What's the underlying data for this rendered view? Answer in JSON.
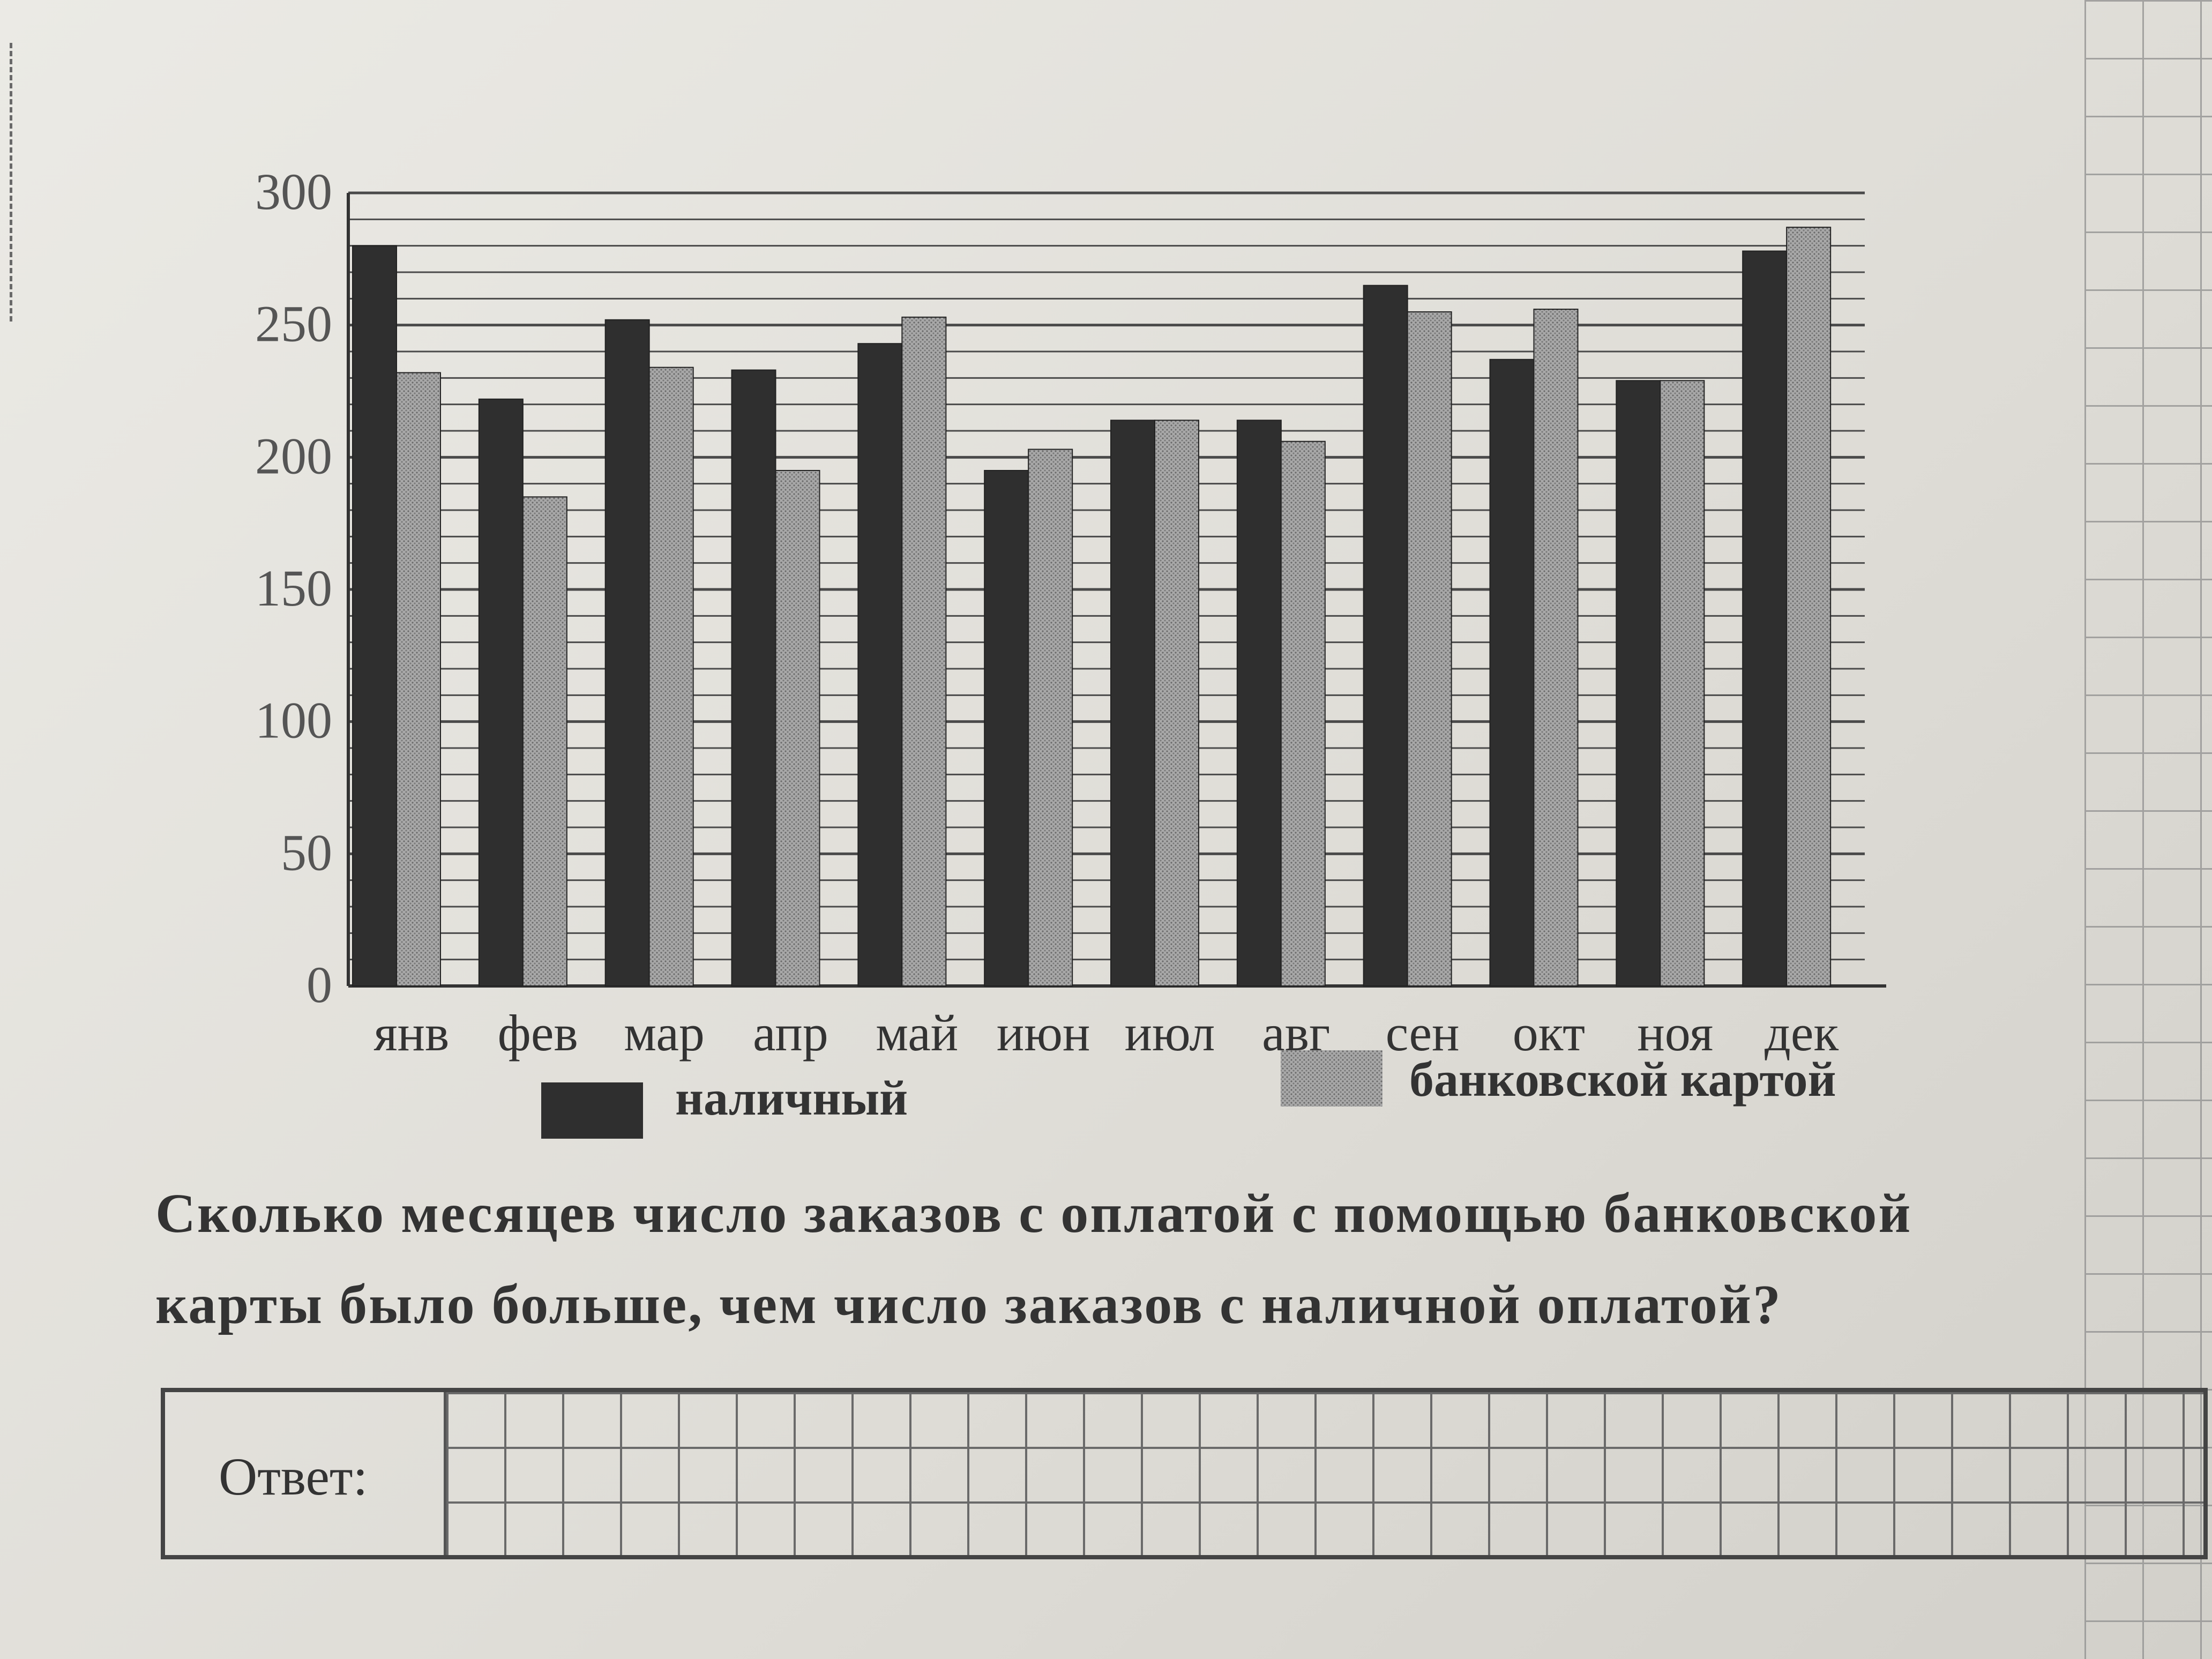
{
  "chart_data": {
    "type": "bar",
    "categories": [
      "янв",
      "фев",
      "мар",
      "апр",
      "май",
      "июн",
      "июл",
      "авг",
      "сен",
      "окт",
      "ноя",
      "дек"
    ],
    "series": [
      {
        "name": "наличный",
        "values": [
          280,
          222,
          252,
          233,
          243,
          195,
          214,
          214,
          265,
          237,
          229,
          278
        ]
      },
      {
        "name": "банковской картой",
        "values": [
          232,
          185,
          234,
          195,
          253,
          203,
          214,
          206,
          255,
          256,
          229,
          287
        ]
      }
    ],
    "ylim": [
      0,
      300
    ],
    "yticks": [
      "0",
      "50",
      "100",
      "150",
      "200",
      "250",
      "300"
    ],
    "grid": true,
    "legend": "bottom",
    "colors": {
      "cash": "#2f2f2f",
      "card": "#9a9a9a",
      "grid": "#4a4a4a"
    }
  },
  "question": {
    "line1": "Сколько месяцев число заказов с оплатой с помощью банковской",
    "line2": "карты было больше, чем число заказов с наличной оплатой?"
  },
  "answer": {
    "label": "Ответ:",
    "value": ""
  }
}
